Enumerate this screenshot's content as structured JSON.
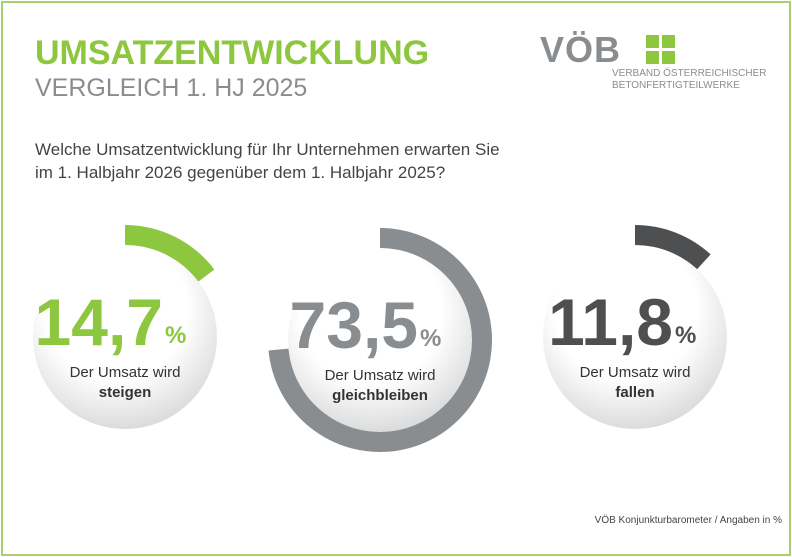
{
  "title": "UMSATZENTWICKLUNG",
  "subtitle": "VERGLEICH 1. HJ 2025",
  "logo": {
    "name": "VÖB",
    "line1": "VERBAND ÖSTERREICHISCHER",
    "line2": "BETONFERTIGTEILWERKE"
  },
  "chart_data": {
    "type": "donut",
    "question": [
      "Welche Umsatzentwicklung für Ihr Unternehmen erwarten Sie",
      "im 1. Halbjahr 2026 gegenüber dem 1. Halbjahr 2025?"
    ],
    "label_prefix": "Der Umsatz wird",
    "categories": [
      "steigen",
      "gleichbleiben",
      "fallen"
    ],
    "values": [
      14.7,
      73.5,
      11.8
    ],
    "value_labels": [
      "14,7",
      "73,5",
      "11,8"
    ],
    "unit": "%",
    "colors": [
      "#8dc63f",
      "#8a8d90",
      "#4d4f51"
    ],
    "note": "VÖB Konjunkturbarometer / Angaben in %"
  }
}
